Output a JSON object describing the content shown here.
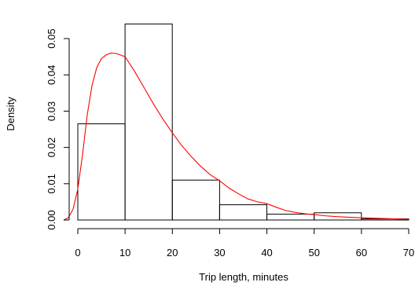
{
  "chart_data": {
    "type": "bar",
    "subtype": "histogram",
    "title": "",
    "xlabel": "Trip length, minutes",
    "ylabel": "Density",
    "xlim": [
      0,
      70
    ],
    "ylim": [
      0,
      0.055
    ],
    "x_ticks": [
      "0",
      "10",
      "20",
      "30",
      "40",
      "50",
      "60",
      "70"
    ],
    "y_ticks": [
      "0.00",
      "0.01",
      "0.02",
      "0.03",
      "0.04",
      "0.05"
    ],
    "grid": false,
    "bins": [
      {
        "x0": 0,
        "x1": 10,
        "density": 0.0265
      },
      {
        "x0": 10,
        "x1": 20,
        "density": 0.054
      },
      {
        "x0": 20,
        "x1": 30,
        "density": 0.011
      },
      {
        "x0": 30,
        "x1": 40,
        "density": 0.0042
      },
      {
        "x0": 40,
        "x1": 50,
        "density": 0.0016
      },
      {
        "x0": 50,
        "x1": 60,
        "density": 0.002
      },
      {
        "x0": 60,
        "x1": 70,
        "density": 0.0003
      }
    ],
    "density_curve": {
      "color": "#ff0000",
      "x": [
        -3,
        -2,
        -1,
        0,
        1,
        2,
        3,
        4,
        5,
        6,
        7,
        8,
        9,
        10,
        12,
        14,
        16,
        18,
        20,
        22,
        24,
        26,
        28,
        30,
        32,
        34,
        36,
        38,
        40,
        42,
        44,
        46,
        48,
        50,
        52,
        55,
        60,
        65,
        70
      ],
      "y": [
        0.0,
        0.0006,
        0.003,
        0.0085,
        0.018,
        0.029,
        0.037,
        0.042,
        0.0445,
        0.0455,
        0.046,
        0.0459,
        0.0455,
        0.045,
        0.041,
        0.0365,
        0.032,
        0.0278,
        0.024,
        0.0205,
        0.0175,
        0.0148,
        0.0125,
        0.0108,
        0.0088,
        0.0072,
        0.0058,
        0.005,
        0.0045,
        0.0035,
        0.0026,
        0.0021,
        0.0017,
        0.0015,
        0.0012,
        0.0009,
        0.0006,
        0.0004,
        0.0002
      ]
    },
    "bar_stroke": "#000000",
    "bar_fill": "none"
  }
}
